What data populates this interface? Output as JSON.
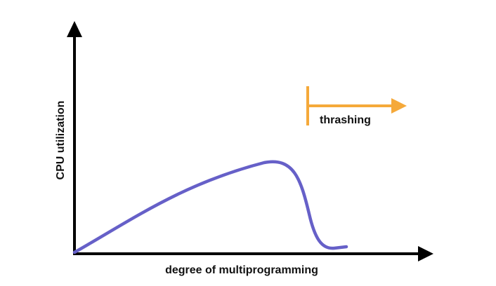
{
  "diagram": {
    "xlabel": "degree of multiprogramming",
    "ylabel": "CPU utilization",
    "annotation": "thrashing"
  },
  "colors": {
    "axis": "#000000",
    "curve": "#6660c8",
    "thrashing_marker": "#f5a93a",
    "text": "#111111"
  }
}
